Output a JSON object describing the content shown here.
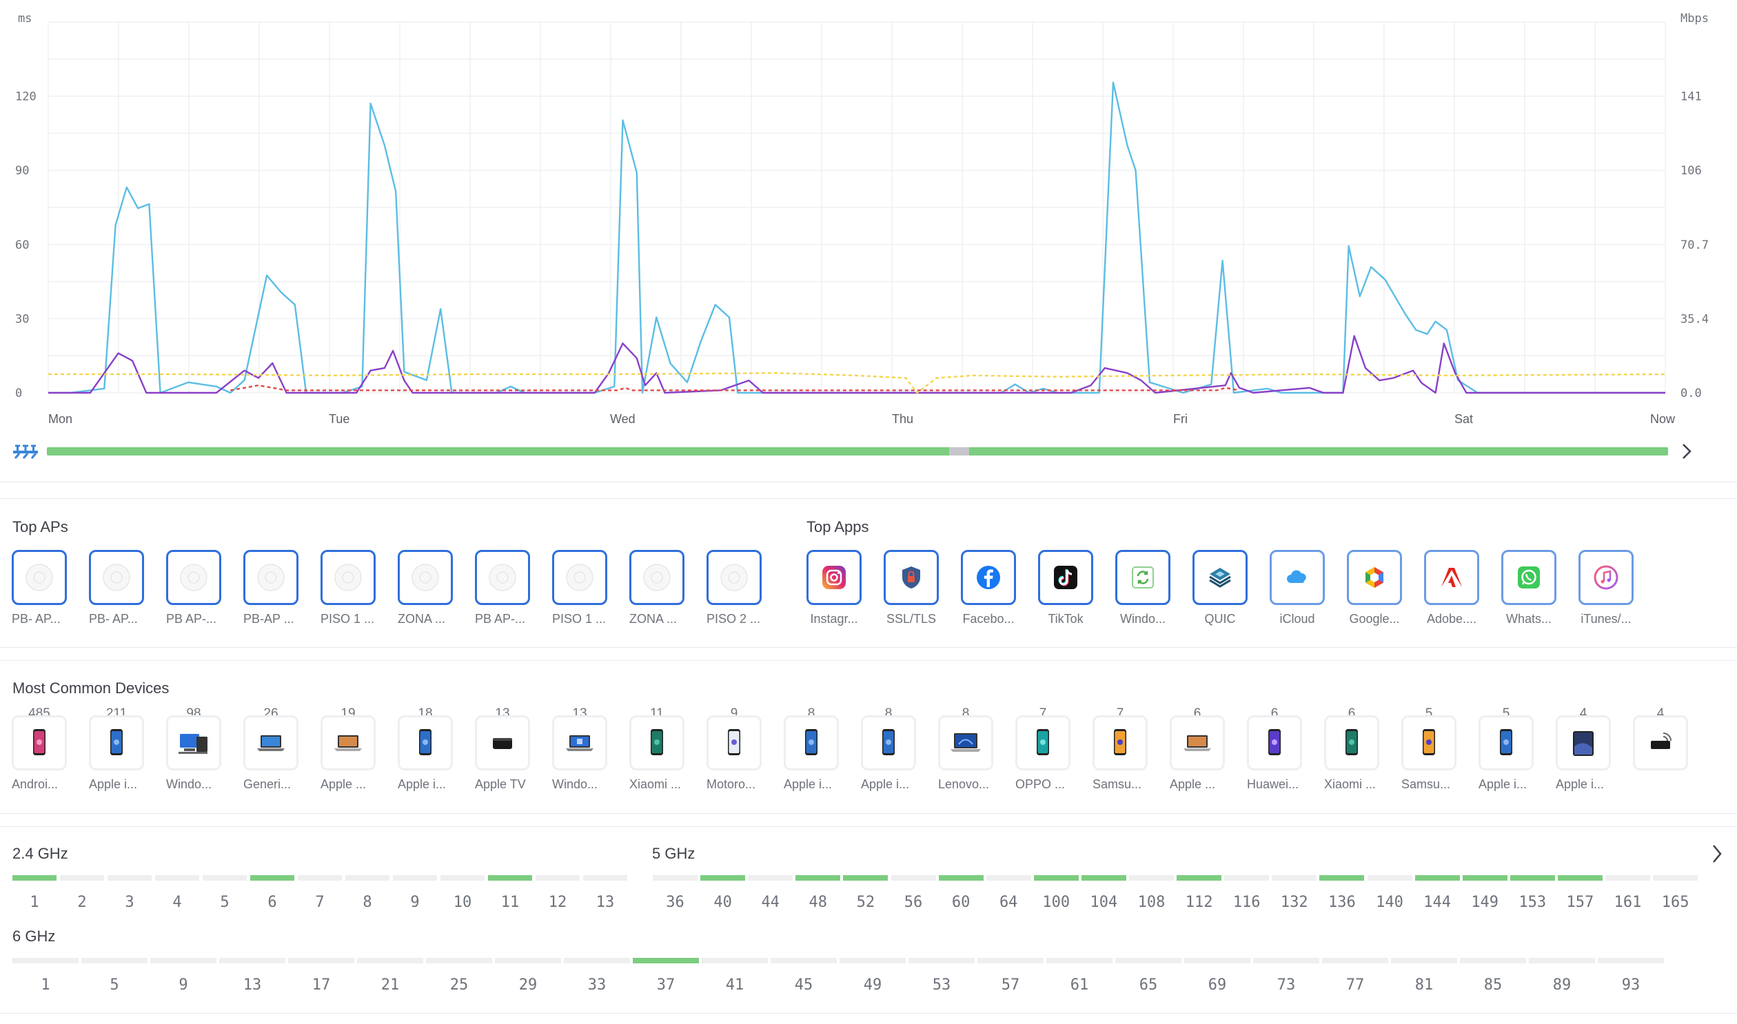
{
  "chart": {
    "left_axis_unit": "ms",
    "right_axis_unit": "Mbps",
    "left_ticks": [
      "120",
      "90",
      "60",
      "30",
      "0"
    ],
    "right_ticks": [
      "141",
      "106",
      "70.7",
      "35.4",
      "0.0"
    ],
    "day_labels": [
      "Mon",
      "Tue",
      "Wed",
      "Thu",
      "Fri",
      "Sat",
      "Now"
    ],
    "colors": {
      "throughput": "#5bbde4",
      "latency": "#8a3fc8",
      "reference": "#f4d44d",
      "retries": "#e04848",
      "grid": "#eef0f2"
    }
  },
  "chart_data": {
    "type": "line",
    "x": [
      "Mon",
      "Tue",
      "Wed",
      "Thu",
      "Fri",
      "Sat",
      "Now"
    ],
    "y_left_label": "ms",
    "y_right_label": "Mbps",
    "ylim_left": [
      0,
      150
    ],
    "ylim_right": [
      0,
      176.8
    ],
    "grid": true,
    "series": [
      {
        "axis": "right",
        "color": "#5bbde4",
        "points": [
          [
            0,
            0
          ],
          [
            0.08,
            0
          ],
          [
            0.2,
            2
          ],
          [
            0.24,
            80
          ],
          [
            0.28,
            98
          ],
          [
            0.32,
            88
          ],
          [
            0.36,
            90
          ],
          [
            0.4,
            0
          ],
          [
            0.5,
            5
          ],
          [
            0.6,
            3
          ],
          [
            0.65,
            0
          ],
          [
            0.7,
            6
          ],
          [
            0.78,
            56
          ],
          [
            0.83,
            48
          ],
          [
            0.88,
            42
          ],
          [
            0.92,
            0
          ],
          [
            1.05,
            0
          ],
          [
            1.12,
            3
          ],
          [
            1.15,
            138
          ],
          [
            1.2,
            118
          ],
          [
            1.24,
            96
          ],
          [
            1.27,
            10
          ],
          [
            1.35,
            6
          ],
          [
            1.4,
            40
          ],
          [
            1.44,
            0
          ],
          [
            1.6,
            0
          ],
          [
            1.65,
            3
          ],
          [
            1.7,
            0
          ],
          [
            1.95,
            0
          ],
          [
            2.02,
            3
          ],
          [
            2.05,
            130
          ],
          [
            2.1,
            105
          ],
          [
            2.12,
            0
          ],
          [
            2.17,
            36
          ],
          [
            2.22,
            14
          ],
          [
            2.28,
            5
          ],
          [
            2.33,
            25
          ],
          [
            2.38,
            42
          ],
          [
            2.43,
            36
          ],
          [
            2.46,
            0
          ],
          [
            2.8,
            0
          ],
          [
            3.0,
            0
          ],
          [
            3.4,
            0
          ],
          [
            3.45,
            4
          ],
          [
            3.5,
            0
          ],
          [
            3.55,
            2
          ],
          [
            3.6,
            0
          ],
          [
            3.75,
            0
          ],
          [
            3.8,
            148
          ],
          [
            3.85,
            118
          ],
          [
            3.88,
            106
          ],
          [
            3.93,
            5
          ],
          [
            4.05,
            0
          ],
          [
            4.15,
            4
          ],
          [
            4.19,
            63
          ],
          [
            4.23,
            0
          ],
          [
            4.35,
            2
          ],
          [
            4.4,
            0
          ],
          [
            4.62,
            0
          ],
          [
            4.64,
            70
          ],
          [
            4.68,
            46
          ],
          [
            4.72,
            60
          ],
          [
            4.77,
            54
          ],
          [
            4.84,
            38
          ],
          [
            4.88,
            30
          ],
          [
            4.92,
            28
          ],
          [
            4.95,
            34
          ],
          [
            4.99,
            30
          ],
          [
            5.03,
            6
          ],
          [
            5.1,
            0
          ],
          [
            5.6,
            0
          ],
          [
            5.77,
            0
          ]
        ]
      },
      {
        "axis": "left",
        "color": "#8a3fc8",
        "points": [
          [
            0,
            0
          ],
          [
            0.15,
            0
          ],
          [
            0.2,
            8
          ],
          [
            0.25,
            16
          ],
          [
            0.3,
            13
          ],
          [
            0.35,
            0
          ],
          [
            0.6,
            0
          ],
          [
            0.7,
            9
          ],
          [
            0.75,
            6
          ],
          [
            0.8,
            12
          ],
          [
            0.85,
            0
          ],
          [
            1.1,
            0
          ],
          [
            1.15,
            9
          ],
          [
            1.2,
            10
          ],
          [
            1.23,
            17
          ],
          [
            1.27,
            5
          ],
          [
            1.3,
            0
          ],
          [
            1.95,
            0
          ],
          [
            2.0,
            8
          ],
          [
            2.05,
            20
          ],
          [
            2.1,
            14
          ],
          [
            2.13,
            3
          ],
          [
            2.17,
            8
          ],
          [
            2.2,
            0
          ],
          [
            2.4,
            1
          ],
          [
            2.5,
            5
          ],
          [
            2.55,
            0
          ],
          [
            3.65,
            0
          ],
          [
            3.72,
            3
          ],
          [
            3.77,
            10
          ],
          [
            3.85,
            8
          ],
          [
            3.9,
            5
          ],
          [
            3.95,
            0
          ],
          [
            4.2,
            3
          ],
          [
            4.22,
            8
          ],
          [
            4.25,
            2
          ],
          [
            4.3,
            0
          ],
          [
            4.5,
            2
          ],
          [
            4.55,
            0
          ],
          [
            4.62,
            0
          ],
          [
            4.66,
            23
          ],
          [
            4.7,
            10
          ],
          [
            4.75,
            5
          ],
          [
            4.8,
            6
          ],
          [
            4.87,
            9
          ],
          [
            4.9,
            4
          ],
          [
            4.95,
            0
          ],
          [
            4.98,
            20
          ],
          [
            5.02,
            8
          ],
          [
            5.06,
            0
          ],
          [
            5.77,
            0
          ]
        ]
      },
      {
        "axis": "left",
        "color": "#f4d44d",
        "dashed": true,
        "points": [
          [
            0,
            7.5
          ],
          [
            0.5,
            7.5
          ],
          [
            1.0,
            7
          ],
          [
            1.5,
            7.5
          ],
          [
            2.0,
            7.5
          ],
          [
            2.6,
            8
          ],
          [
            2.88,
            7
          ],
          [
            3.06,
            6
          ],
          [
            3.1,
            0
          ],
          [
            3.17,
            6
          ],
          [
            3.3,
            7
          ],
          [
            3.6,
            6.5
          ],
          [
            4.0,
            7
          ],
          [
            4.5,
            7.5
          ],
          [
            5.0,
            7
          ],
          [
            5.77,
            7.5
          ]
        ]
      },
      {
        "axis": "left",
        "color": "#e04848",
        "dashed": true,
        "points": [
          [
            0.65,
            1
          ],
          [
            0.75,
            3
          ],
          [
            0.85,
            1
          ],
          [
            2.03,
            1
          ],
          [
            2.06,
            2
          ],
          [
            2.08,
            1
          ],
          [
            4.17,
            1
          ],
          [
            4.2,
            2
          ],
          [
            4.25,
            1
          ]
        ]
      }
    ]
  },
  "uptime": {
    "segments": [
      {
        "fraction": 0.5565,
        "color": "#7ccd7f"
      },
      {
        "fraction": 0.0125,
        "color": "#c4c6cb"
      },
      {
        "fraction": 0.431,
        "color": "#7ccd7f"
      }
    ]
  },
  "top_aps": {
    "title": "Top APs",
    "items": [
      {
        "label": "PB- AP..."
      },
      {
        "label": "PB- AP..."
      },
      {
        "label": "PB AP-..."
      },
      {
        "label": "PB-AP ..."
      },
      {
        "label": "PISO 1 ..."
      },
      {
        "label": "ZONA ..."
      },
      {
        "label": "PB AP-..."
      },
      {
        "label": "PISO 1 ..."
      },
      {
        "label": "ZONA ..."
      },
      {
        "label": "PISO 2 ..."
      }
    ]
  },
  "top_apps": {
    "title": "Top Apps",
    "items": [
      {
        "label": "Instagr...",
        "icon": "instagram-icon"
      },
      {
        "label": "SSL/TLS",
        "icon": "ssl-tls-icon"
      },
      {
        "label": "Facebo...",
        "icon": "facebook-icon"
      },
      {
        "label": "TikTok",
        "icon": "tiktok-icon"
      },
      {
        "label": "Windo...",
        "icon": "windows-update-icon"
      },
      {
        "label": "QUIC",
        "icon": "quic-icon"
      },
      {
        "label": "iCloud",
        "icon": "icloud-icon"
      },
      {
        "label": "Google...",
        "icon": "google-icon"
      },
      {
        "label": "Adobe....",
        "icon": "adobe-icon"
      },
      {
        "label": "Whats...",
        "icon": "whatsapp-icon"
      },
      {
        "label": "iTunes/...",
        "icon": "itunes-icon"
      }
    ]
  },
  "devices": {
    "title": "Most Common Devices",
    "items": [
      {
        "count": "485",
        "label": "Androi...",
        "icon": "android-phone-icon"
      },
      {
        "count": "211",
        "label": "Apple i...",
        "icon": "iphone-icon"
      },
      {
        "count": "98",
        "label": "Windo...",
        "icon": "windows-pc-icon"
      },
      {
        "count": "26",
        "label": "Generi...",
        "icon": "laptop-icon"
      },
      {
        "count": "19",
        "label": "Apple ...",
        "icon": "macbook-icon"
      },
      {
        "count": "18",
        "label": "Apple i...",
        "icon": "iphone-icon"
      },
      {
        "count": "13",
        "label": "Apple TV",
        "icon": "apple-tv-icon"
      },
      {
        "count": "13",
        "label": "Windo...",
        "icon": "windows-laptop-icon"
      },
      {
        "count": "11",
        "label": "Xiaomi ...",
        "icon": "xiaomi-phone-icon"
      },
      {
        "count": "9",
        "label": "Motoro...",
        "icon": "motorola-phone-icon"
      },
      {
        "count": "8",
        "label": "Apple i...",
        "icon": "iphone-icon"
      },
      {
        "count": "8",
        "label": "Apple i...",
        "icon": "iphone-icon"
      },
      {
        "count": "8",
        "label": "Lenovo...",
        "icon": "lenovo-laptop-icon"
      },
      {
        "count": "7",
        "label": "OPPO ...",
        "icon": "oppo-phone-icon"
      },
      {
        "count": "7",
        "label": "Samsu...",
        "icon": "samsung-phone-icon"
      },
      {
        "count": "6",
        "label": "Apple ...",
        "icon": "macbook-icon"
      },
      {
        "count": "6",
        "label": "Huawei...",
        "icon": "huawei-phone-icon"
      },
      {
        "count": "6",
        "label": "Xiaomi ...",
        "icon": "xiaomi-phone-icon"
      },
      {
        "count": "5",
        "label": "Samsu...",
        "icon": "samsung-phone-icon"
      },
      {
        "count": "5",
        "label": "Apple i...",
        "icon": "iphone-icon"
      },
      {
        "count": "4",
        "label": "Apple i...",
        "icon": "ipad-icon"
      },
      {
        "count": "4",
        "label": "",
        "icon": "router-icon"
      }
    ]
  },
  "channels": {
    "band_24": {
      "title": "2.4 GHz",
      "channels": [
        {
          "n": "1",
          "active": true
        },
        {
          "n": "2",
          "active": false
        },
        {
          "n": "3",
          "active": false
        },
        {
          "n": "4",
          "active": false
        },
        {
          "n": "5",
          "active": false
        },
        {
          "n": "6",
          "active": true
        },
        {
          "n": "7",
          "active": false
        },
        {
          "n": "8",
          "active": false
        },
        {
          "n": "9",
          "active": false
        },
        {
          "n": "10",
          "active": false
        },
        {
          "n": "11",
          "active": true
        },
        {
          "n": "12",
          "active": false
        },
        {
          "n": "13",
          "active": false
        }
      ]
    },
    "band_5": {
      "title": "5 GHz",
      "channels": [
        {
          "n": "36",
          "active": false
        },
        {
          "n": "40",
          "active": true
        },
        {
          "n": "44",
          "active": false
        },
        {
          "n": "48",
          "active": true
        },
        {
          "n": "52",
          "active": true
        },
        {
          "n": "56",
          "active": false
        },
        {
          "n": "60",
          "active": true
        },
        {
          "n": "64",
          "active": false
        },
        {
          "n": "100",
          "active": true
        },
        {
          "n": "104",
          "active": true
        },
        {
          "n": "108",
          "active": false
        },
        {
          "n": "112",
          "active": true
        },
        {
          "n": "116",
          "active": false
        },
        {
          "n": "132",
          "active": false
        },
        {
          "n": "136",
          "active": true
        },
        {
          "n": "140",
          "active": false
        },
        {
          "n": "144",
          "active": true
        },
        {
          "n": "149",
          "active": true
        },
        {
          "n": "153",
          "active": true
        },
        {
          "n": "157",
          "active": true
        },
        {
          "n": "161",
          "active": false
        },
        {
          "n": "165",
          "active": false
        }
      ]
    },
    "band_6": {
      "title": "6 GHz",
      "channels": [
        {
          "n": "1",
          "active": false
        },
        {
          "n": "5",
          "active": false
        },
        {
          "n": "9",
          "active": false
        },
        {
          "n": "13",
          "active": false
        },
        {
          "n": "17",
          "active": false
        },
        {
          "n": "21",
          "active": false
        },
        {
          "n": "25",
          "active": false
        },
        {
          "n": "29",
          "active": false
        },
        {
          "n": "33",
          "active": false
        },
        {
          "n": "37",
          "active": true
        },
        {
          "n": "41",
          "active": false
        },
        {
          "n": "45",
          "active": false
        },
        {
          "n": "49",
          "active": false
        },
        {
          "n": "53",
          "active": false
        },
        {
          "n": "57",
          "active": false
        },
        {
          "n": "61",
          "active": false
        },
        {
          "n": "65",
          "active": false
        },
        {
          "n": "69",
          "active": false
        },
        {
          "n": "73",
          "active": false
        },
        {
          "n": "77",
          "active": false
        },
        {
          "n": "81",
          "active": false
        },
        {
          "n": "85",
          "active": false
        },
        {
          "n": "89",
          "active": false
        },
        {
          "n": "93",
          "active": false
        }
      ]
    },
    "colors": {
      "active": "#7ccd7f",
      "inactive": "#efefef"
    }
  }
}
